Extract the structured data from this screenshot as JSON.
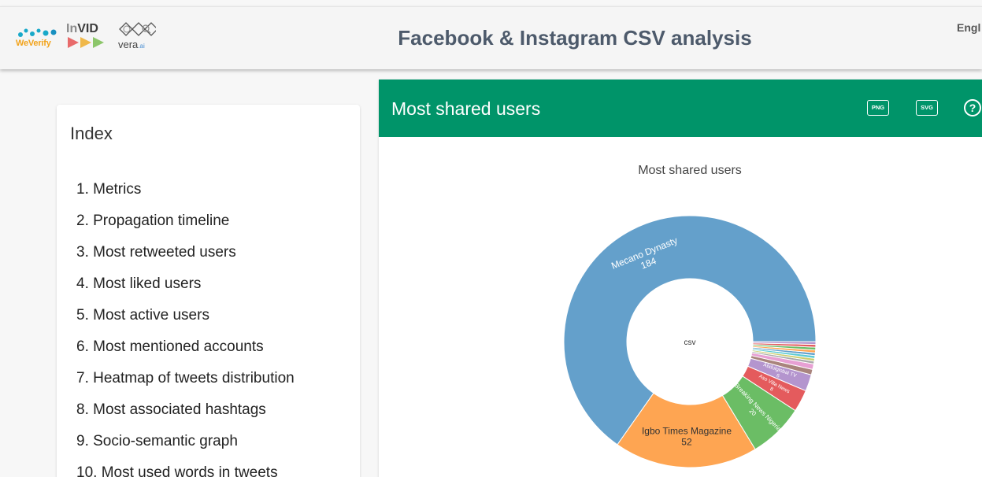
{
  "header": {
    "title": "Facebook & Instagram CSV analysis",
    "language": "Engl",
    "logos": {
      "weverify": "WeVerify",
      "invid_a": "In",
      "invid_b": "VID",
      "vera_main": "vera",
      "vera_sub": ".ai"
    }
  },
  "index": {
    "title": "Index",
    "items": [
      "1. Metrics",
      "2. Propagation timeline",
      "3. Most retweeted users",
      "4. Most liked users",
      "5. Most active users",
      "6. Most mentioned accounts",
      "7. Heatmap of tweets distribution",
      "8. Most associated hashtags",
      "9. Socio-semantic graph",
      "10. Most used words in tweets"
    ]
  },
  "panel": {
    "title": "Most shared users",
    "png_label": "PNG",
    "svg_label": "SVG",
    "help_label": "?"
  },
  "colors": {
    "header_green": "#009469"
  },
  "chart_data": {
    "type": "pie",
    "title": "Most shared users",
    "hole_label": "csv",
    "slices": [
      {
        "label": "Mecano Dynasty",
        "value": 184,
        "color": "#64a0cb"
      },
      {
        "label": "Igbo Times Magazine",
        "value": 52,
        "color": "#fea552"
      },
      {
        "label": "Breaking News Nigeria",
        "value": 20,
        "color": "#6bbd65"
      },
      {
        "label": "Aso Villa News",
        "value": 8,
        "color": "#e45b5d"
      },
      {
        "label": "Abdulglobal TV",
        "value": 6,
        "color": "#b495ce"
      },
      {
        "label": "",
        "value": 2,
        "color": "#a9847d"
      },
      {
        "label": "",
        "value": 2,
        "color": "#e7a0d3"
      },
      {
        "label": "",
        "value": 1,
        "color": "#aaaaaa"
      },
      {
        "label": "",
        "value": 1,
        "color": "#cccd6e"
      },
      {
        "label": "",
        "value": 1,
        "color": "#5bcad5"
      },
      {
        "label": "",
        "value": 1,
        "color": "#64a0cb"
      },
      {
        "label": "",
        "value": 1,
        "color": "#fea552"
      },
      {
        "label": "",
        "value": 1,
        "color": "#6bbd65"
      },
      {
        "label": "",
        "value": 1,
        "color": "#e45b5d"
      },
      {
        "label": "",
        "value": 1,
        "color": "#b495ce"
      }
    ]
  }
}
